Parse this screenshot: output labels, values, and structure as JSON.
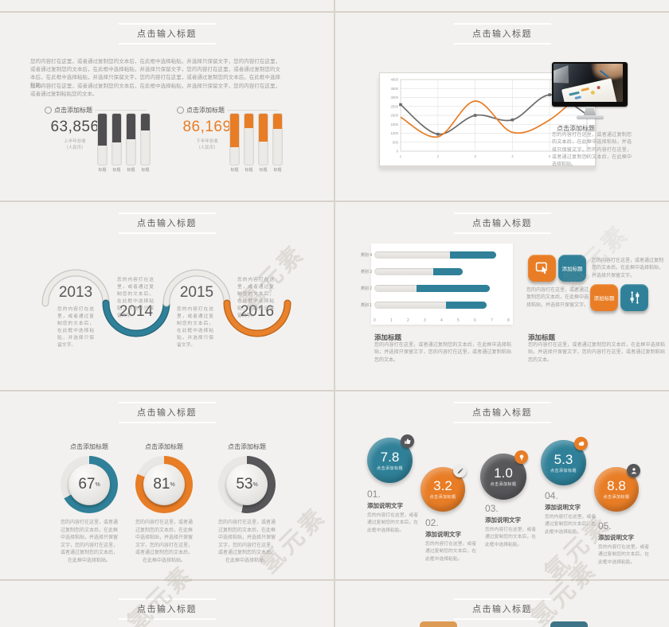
{
  "watermark": {
    "text": "氢元素"
  },
  "common": {
    "slide_title": "点击输入标题",
    "add_title": "点击添加标题",
    "add_title_short": "添加标题",
    "add_desc": "添加说明文字",
    "percent_sign": "%"
  },
  "text": {
    "p_long": "您的内容打在这里，或者通过复制您的文本后，在此框中选择粘贴，并选择只保留文字，您的内容打在这里，或者通过复制您的文本后，在此框中选择粘贴，并选择只保留文字，您的内容打在这里，或者通过复制您的文本后，在此框中选择粘贴，并选择只保留文字，您的内容打在这里，或者通过复制您的文本后，在此框中选择粘贴。",
    "p_mid": "您的内容打在这里，或者通过复制您的文本后，在此框中选择粘贴，并选择只保留文字，您的内容打在这里，或者通过复制您的文本后，在此框中选择粘贴。",
    "p_short": "您的内容打在这里，或者通过复制您的文本后，在此框中选择粘贴，并选择只保留文字，您的内容打在这里，或者通过复制粘贴您的文本。",
    "p_tiny": "您的内容打在这里，或者通过复制您的文本后，在此框中选择粘贴，并选择只保留文字。",
    "p_mini": "您的内容打在这里，或者通过复制您的文本后，在此框中选择粘贴。"
  },
  "slides": {
    "s1": {
      "stats": [
        {
          "header": "点击添加标题",
          "value": "63,856",
          "caption1": "上半年总收",
          "caption2": "（人民币）",
          "value_color": "#4b4b4d",
          "bar_color": "#4f4f51",
          "bars": [
            0.62,
            0.57,
            0.5,
            0.33
          ],
          "bar_label": "标题"
        },
        {
          "header": "点击添加标题",
          "value": "86,169",
          "caption1": "下半年总收",
          "caption2": "（人民币）",
          "value_color": "#e87d26",
          "bar_color": "#e87d26",
          "bars": [
            0.65,
            0.28,
            0.55,
            0.3
          ],
          "bar_label": "标题"
        }
      ]
    },
    "s2": {
      "chart_data": {
        "type": "line",
        "x": [
          1,
          2,
          3,
          4,
          5,
          6
        ],
        "series": [
          {
            "name": "gray",
            "color": "#6b6b6b",
            "values": [
              2600,
              950,
              2000,
              1750,
              3150,
              2050
            ],
            "markers": true
          },
          {
            "name": "orange",
            "color": "#e87d26",
            "values": [
              1900,
              800,
              2800,
              1050,
              1750,
              3600
            ],
            "markers": false
          }
        ],
        "y_ticks": [
          0,
          500,
          1000,
          1500,
          2000,
          2500,
          3000,
          3500,
          4000
        ],
        "ylim": [
          0,
          4000
        ],
        "grid": true,
        "legend": "none"
      },
      "caption_title": "点击添加标题"
    },
    "s3": {
      "years": [
        {
          "year": "2013",
          "position": "top",
          "color_main": "#ecebe8",
          "color_edge": "#c7c6c3"
        },
        {
          "year": "2014",
          "position": "bottom",
          "color_main": "#2f8098",
          "color_edge": "#24657a"
        },
        {
          "year": "2015",
          "position": "top",
          "color_main": "#ecebe8",
          "color_edge": "#c7c6c3"
        },
        {
          "year": "2016",
          "position": "bottom",
          "color_main": "#e8822c",
          "color_edge": "#bc6118"
        }
      ]
    },
    "s4": {
      "chart_data": {
        "type": "bar",
        "orientation": "horizontal",
        "categories": [
          "类别 4",
          "类别 3",
          "类别 2",
          "类别 1"
        ],
        "track_end": [
          7.3,
          5.3,
          6.9,
          6.7
        ],
        "highlight_start": [
          4.5,
          3.5,
          2.5,
          4.3
        ],
        "x_ticks": [
          0,
          1,
          2,
          3,
          4,
          5,
          6,
          7,
          8
        ],
        "xlim": [
          0,
          8
        ],
        "bar_color": "#2f8098",
        "track_color": "#e9e7e4"
      },
      "section1_title": "添加标题",
      "section2_title": "添加标题",
      "tiles": [
        {
          "type": "icon",
          "icon": "click-icon",
          "color": "#e87d26"
        },
        {
          "type": "text",
          "label": "添加标题",
          "color": "#2f8098"
        },
        {
          "type": "text",
          "label": "添加标题",
          "color": "#e87d26"
        },
        {
          "type": "icon",
          "icon": "sliders-icon",
          "color": "#2f8098"
        }
      ]
    },
    "s5": {
      "chart_data": {
        "type": "pie",
        "style": "donut-gauge",
        "items": [
          {
            "label": "点击添加标题",
            "pct": 67,
            "color": "#2f8098"
          },
          {
            "label": "点击添加标题",
            "pct": 81,
            "color": "#e87d26"
          },
          {
            "label": "点击添加标题",
            "pct": 53,
            "color": "#57575a"
          }
        ]
      }
    },
    "s6": {
      "circle_label": "点击添加标题",
      "items": [
        {
          "num": "7.8",
          "color": "#2f8098",
          "badge_color": "#57575a",
          "badge_fg": "#ffffff",
          "badge_icon": "thumbs-up-icon",
          "index": "01.",
          "subtitle": "添加说明文字"
        },
        {
          "num": "3.2",
          "color": "#e87d26",
          "badge_color": "#ececea",
          "badge_fg": "#6b6b6b",
          "badge_icon": "pencil-icon",
          "index": "02.",
          "subtitle": "添加说明文字"
        },
        {
          "num": "1.0",
          "color": "#57575a",
          "badge_color": "#e87d26",
          "badge_fg": "#ffffff",
          "badge_icon": "bulb-icon",
          "index": "03.",
          "subtitle": "添加说明文字"
        },
        {
          "num": "5.3",
          "color": "#2f8098",
          "badge_color": "#e87d26",
          "badge_fg": "#ffffff",
          "badge_icon": "cloud-icon",
          "index": "04.",
          "subtitle": "添加说明文字"
        },
        {
          "num": "8.8",
          "color": "#e87d26",
          "badge_color": "#57575a",
          "badge_fg": "#ffffff",
          "badge_icon": "person-icon",
          "index": "05.",
          "subtitle": "添加说明文字"
        }
      ]
    },
    "s8": {
      "shape_colors": [
        "#dd9a52",
        "#3d7487"
      ]
    }
  }
}
